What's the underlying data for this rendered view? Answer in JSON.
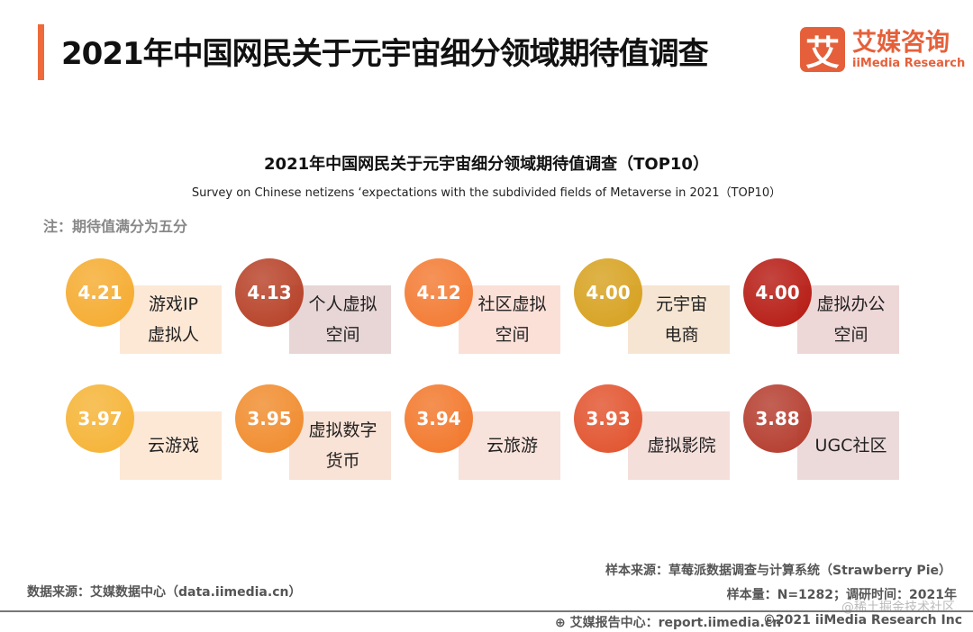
{
  "header": {
    "title": "2021年中国网民关于元宇宙细分领域期待值调查",
    "logo_mark": "艾",
    "logo_cn": "艾媒咨询",
    "logo_en": "iiMedia Research"
  },
  "chart_data": {
    "type": "table",
    "title": "2021年中国网民关于元宇宙细分领域期待值调查（TOP10）",
    "subtitle": "Survey on Chinese netizens ‘expectations with the subdivided fields of Metaverse in 2021（TOP10）",
    "note": "注：期待值满分为五分",
    "items": [
      {
        "label": "游戏IP\n虚拟人",
        "value": "4.21",
        "color": "#f5aa2c",
        "bg": "#fde8d6"
      },
      {
        "label": "个人虚拟\n空间",
        "value": "4.13",
        "color": "#b63e24",
        "bg": "#e8d5d5"
      },
      {
        "label": "社区虚拟\n空间",
        "value": "4.12",
        "color": "#f3782f",
        "bg": "#fbe0d8"
      },
      {
        "label": "元宇宙\n电商",
        "value": "4.00",
        "color": "#d6a01c",
        "bg": "#f6e5d2"
      },
      {
        "label": "虚拟办公\n空间",
        "value": "4.00",
        "color": "#b5170f",
        "bg": "#eed7d7"
      },
      {
        "label": "云游戏",
        "value": "3.97",
        "color": "#f5b232",
        "bg": "#fde8d6"
      },
      {
        "label": "虚拟数字\n货币",
        "value": "3.95",
        "color": "#f08a2a",
        "bg": "#f9e2d6"
      },
      {
        "label": "云旅游",
        "value": "3.94",
        "color": "#f27527",
        "bg": "#f8e2dc"
      },
      {
        "label": "虚拟影院",
        "value": "3.93",
        "color": "#e1502a",
        "bg": "#f4dfdb"
      },
      {
        "label": "UGC社区",
        "value": "3.88",
        "color": "#b3392a",
        "bg": "#ecdada"
      }
    ]
  },
  "footer": {
    "data_source": "数据来源：艾媒数据中心（data.iimedia.cn）",
    "sample_source": "样本来源：草莓派数据调查与计算系统（Strawberry Pie）",
    "sample_size": "样本量：N=1282；调研时间：2021年",
    "report_center": "艾媒报告中心：report.iimedia.cn",
    "copyright": "©2021  iiMedia Research  Inc",
    "watermark": "@稀土掘金技术社区"
  }
}
